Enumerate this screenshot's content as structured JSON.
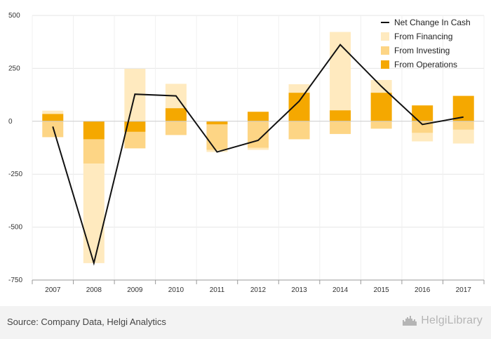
{
  "chart_data": {
    "type": "bar",
    "categories": [
      "2007",
      "2008",
      "2009",
      "2010",
      "2011",
      "2012",
      "2013",
      "2014",
      "2015",
      "2016",
      "2017"
    ],
    "ylim": [
      -750,
      500
    ],
    "yticks": [
      500,
      250,
      0,
      -250,
      -500,
      -750
    ],
    "ytick_labels": [
      "500",
      "250",
      "0",
      "-250",
      "-500",
      "-750"
    ],
    "series": [
      {
        "name": "From Operations",
        "kind": "bar",
        "color": "#f5a800",
        "values": [
          35,
          -85,
          -50,
          62,
          -15,
          45,
          135,
          52,
          135,
          75,
          120
        ]
      },
      {
        "name": "From Investing",
        "kind": "bar",
        "color": "#fdd585",
        "values": [
          -75,
          -115,
          -78,
          -65,
          -120,
          -125,
          -85,
          -60,
          -35,
          -55,
          -40
        ]
      },
      {
        "name": "From Financing",
        "kind": "bar",
        "color": "#ffeabf",
        "values": [
          15,
          -470,
          248,
          115,
          -10,
          -10,
          40,
          370,
          60,
          -40,
          -65
        ]
      },
      {
        "name": "Net Change In Cash",
        "kind": "line",
        "color": "#111111",
        "values": [
          -25,
          -670,
          128,
          120,
          -145,
          -90,
          95,
          362,
          165,
          -15,
          20
        ]
      }
    ],
    "legend_position": "top-right",
    "grid": true,
    "title": "",
    "xlabel": "",
    "ylabel": ""
  },
  "footer": {
    "source": "Source: Company Data, Helgi Analytics",
    "brand": "HelgiLibrary",
    "brand_icon": "helgi-castle-icon"
  }
}
